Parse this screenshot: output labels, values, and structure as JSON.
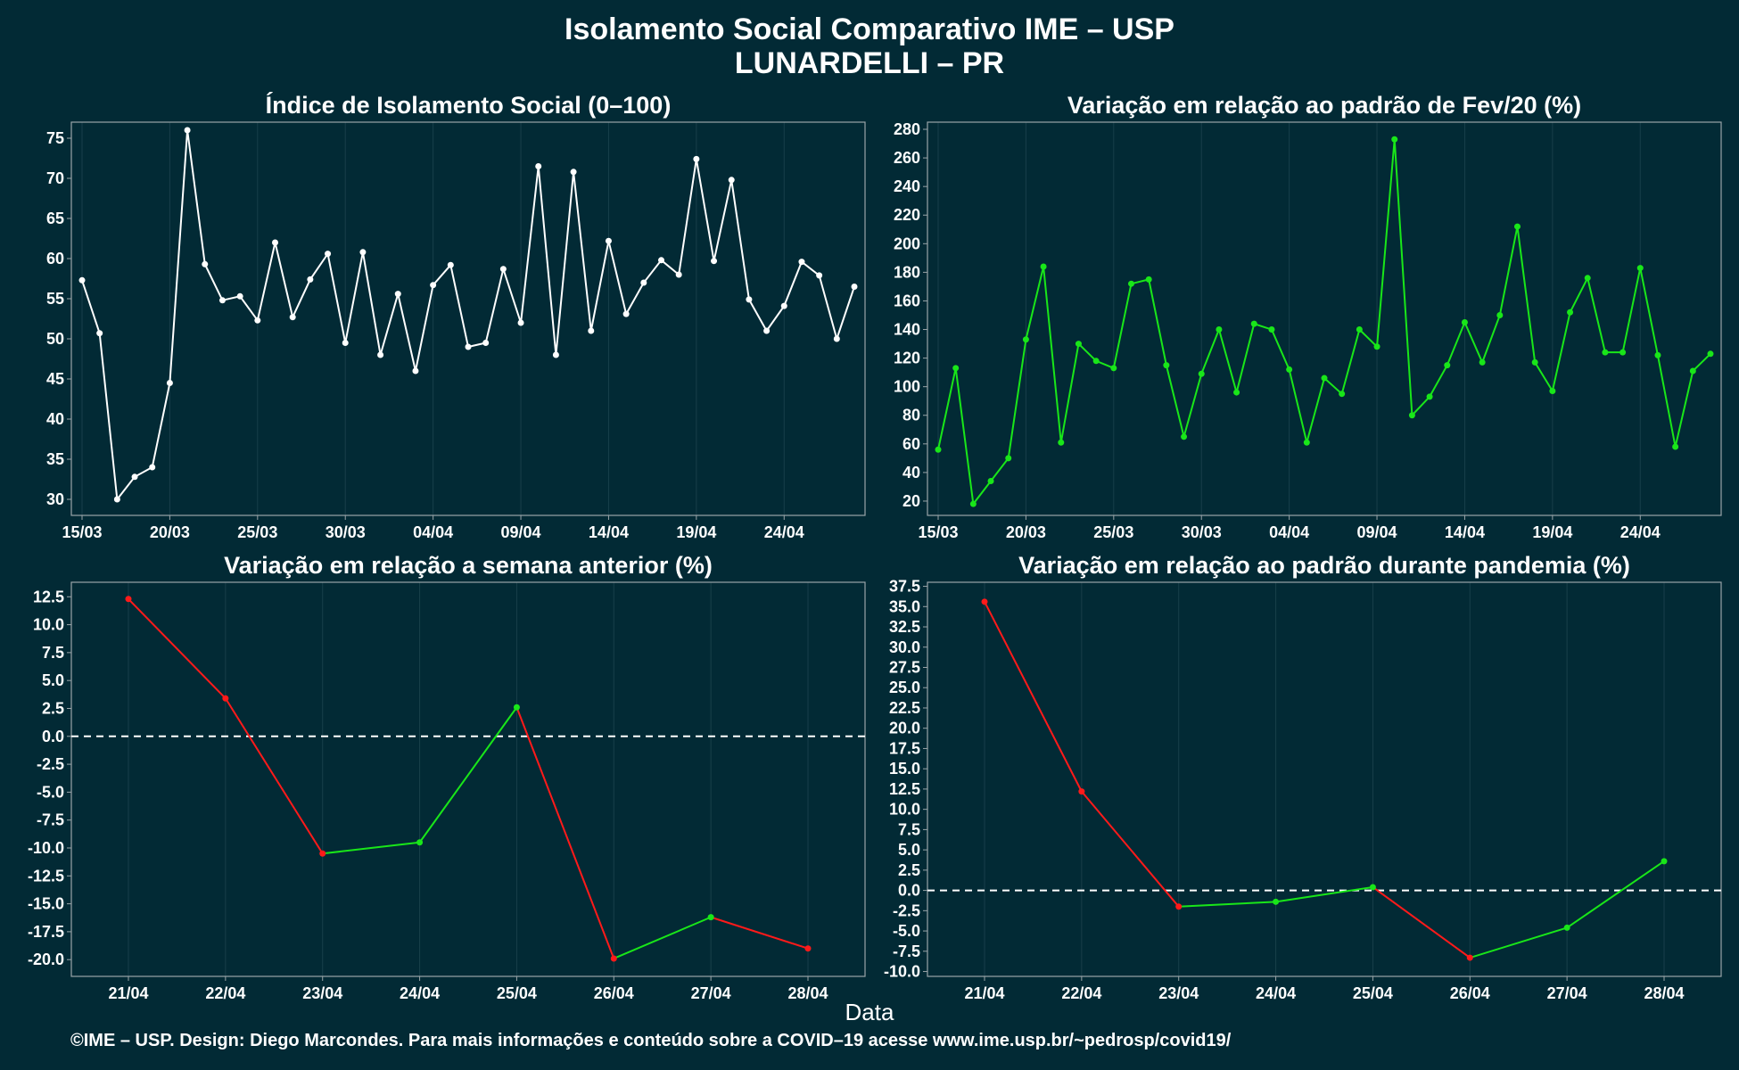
{
  "header": {
    "title_line1": "Isolamento Social Comparativo IME – USP",
    "title_line2": "LUNARDELLI – PR"
  },
  "common_xlabel": "Data",
  "footer": "©IME – USP. Design: Diego Marcondes. Para mais informações e conteúdo sobre a COVID–19 acesse www.ime.usp.br/~pedrosp/covid19/",
  "colors": {
    "background": "#022a35",
    "panel_border": "#9aa4a8",
    "grid": "#183f4a",
    "white_series": "#ffffff",
    "increase": "#19e619",
    "decrease": "#ff1a1a",
    "zero_line": "#ffffff"
  },
  "chart_data": [
    {
      "type": "line",
      "title": "Índice de Isolamento Social (0–100)",
      "x_tick_labels": [
        "15/03",
        "20/03",
        "25/03",
        "30/03",
        "04/04",
        "09/04",
        "14/04",
        "19/04",
        "24/04"
      ],
      "x": [
        "15/03",
        "16/03",
        "17/03",
        "18/03",
        "19/03",
        "20/03",
        "21/03",
        "22/03",
        "23/03",
        "24/03",
        "25/03",
        "26/03",
        "27/03",
        "28/03",
        "29/03",
        "30/03",
        "31/03",
        "01/04",
        "02/04",
        "03/04",
        "04/04",
        "05/04",
        "06/04",
        "07/04",
        "08/04",
        "09/04",
        "10/04",
        "11/04",
        "12/04",
        "13/04",
        "14/04",
        "15/04",
        "16/04",
        "17/04",
        "18/04",
        "19/04",
        "20/04",
        "21/04",
        "22/04",
        "23/04",
        "24/04",
        "25/04",
        "26/04",
        "27/04",
        "28/04"
      ],
      "series": [
        {
          "color": "#ffffff",
          "values": [
            57.3,
            50.7,
            30.0,
            32.8,
            34.0,
            44.5,
            76.0,
            59.3,
            54.8,
            55.3,
            52.3,
            62.0,
            52.7,
            57.4,
            60.6,
            49.5,
            60.8,
            48.0,
            55.6,
            46.0,
            56.7,
            59.2,
            49.0,
            49.5,
            58.7,
            52.0,
            71.5,
            48.0,
            70.8,
            51.0,
            62.2,
            53.1,
            57.0,
            59.8,
            58.0,
            72.4,
            59.7,
            69.8,
            54.9,
            51.0,
            54.1,
            59.6,
            57.9,
            50.0,
            56.5
          ]
        }
      ],
      "ylim": [
        28,
        77
      ],
      "y_ticks": [
        30,
        35,
        40,
        45,
        50,
        55,
        60,
        65,
        70,
        75
      ]
    },
    {
      "type": "line",
      "title": "Variação em relação ao padrão de Fev/20 (%)",
      "x_tick_labels": [
        "15/03",
        "20/03",
        "25/03",
        "30/03",
        "04/04",
        "09/04",
        "14/04",
        "19/04",
        "24/04"
      ],
      "x": [
        "15/03",
        "16/03",
        "17/03",
        "18/03",
        "19/03",
        "20/03",
        "21/03",
        "22/03",
        "23/03",
        "24/03",
        "25/03",
        "26/03",
        "27/03",
        "28/03",
        "29/03",
        "30/03",
        "31/03",
        "01/04",
        "02/04",
        "03/04",
        "04/04",
        "05/04",
        "06/04",
        "07/04",
        "08/04",
        "09/04",
        "10/04",
        "11/04",
        "12/04",
        "13/04",
        "14/04",
        "15/04",
        "16/04",
        "17/04",
        "18/04",
        "19/04",
        "20/04",
        "21/04",
        "22/04",
        "23/04",
        "24/04",
        "25/04",
        "26/04",
        "27/04",
        "28/04"
      ],
      "series": [
        {
          "color": "#19e619",
          "values": [
            56,
            113,
            18,
            34,
            50,
            133,
            184,
            61,
            130,
            118,
            113,
            172,
            175,
            115,
            65,
            109,
            140,
            96,
            144,
            140,
            112,
            61,
            106,
            95,
            140,
            128,
            273,
            80,
            93,
            115,
            145,
            117,
            150,
            212,
            117,
            97,
            152,
            176,
            124,
            124,
            183,
            122,
            58,
            111,
            123
          ]
        }
      ],
      "ylim": [
        10,
        285
      ],
      "y_ticks": [
        20,
        40,
        60,
        80,
        100,
        120,
        140,
        160,
        180,
        200,
        220,
        240,
        260,
        280
      ]
    },
    {
      "type": "line",
      "title": "Variação em relação a semana anterior (%)",
      "x": [
        "21/04",
        "22/04",
        "23/04",
        "24/04",
        "25/04",
        "26/04",
        "27/04",
        "28/04"
      ],
      "series": [
        {
          "values": [
            12.3,
            3.4,
            -10.5,
            -9.5,
            2.6,
            -19.9,
            -16.2,
            -19.0
          ]
        }
      ],
      "segment_colors": {
        "increase": "#19e619",
        "decrease": "#ff1a1a"
      },
      "reference_line": 0,
      "ylim": [
        -21.5,
        13.8
      ],
      "y_ticks": [
        -20,
        -17.5,
        -15,
        -12.5,
        -10,
        -7.5,
        -5,
        -2.5,
        0,
        2.5,
        5,
        7.5,
        10,
        12.5
      ]
    },
    {
      "type": "line",
      "title": "Variação em relação ao padrão durante pandemia (%)",
      "x": [
        "21/04",
        "22/04",
        "23/04",
        "24/04",
        "25/04",
        "26/04",
        "27/04",
        "28/04"
      ],
      "series": [
        {
          "values": [
            35.6,
            12.2,
            -2.0,
            -1.4,
            0.4,
            -8.3,
            -4.6,
            3.6
          ]
        }
      ],
      "segment_colors": {
        "increase": "#19e619",
        "decrease": "#ff1a1a"
      },
      "reference_line": 0,
      "ylim": [
        -10.6,
        38.0
      ],
      "y_ticks": [
        -10,
        -7.5,
        -5,
        -2.5,
        0,
        2.5,
        5,
        7.5,
        10,
        12.5,
        15,
        17.5,
        20,
        22.5,
        25,
        27.5,
        30,
        32.5,
        35,
        37.5
      ]
    }
  ]
}
